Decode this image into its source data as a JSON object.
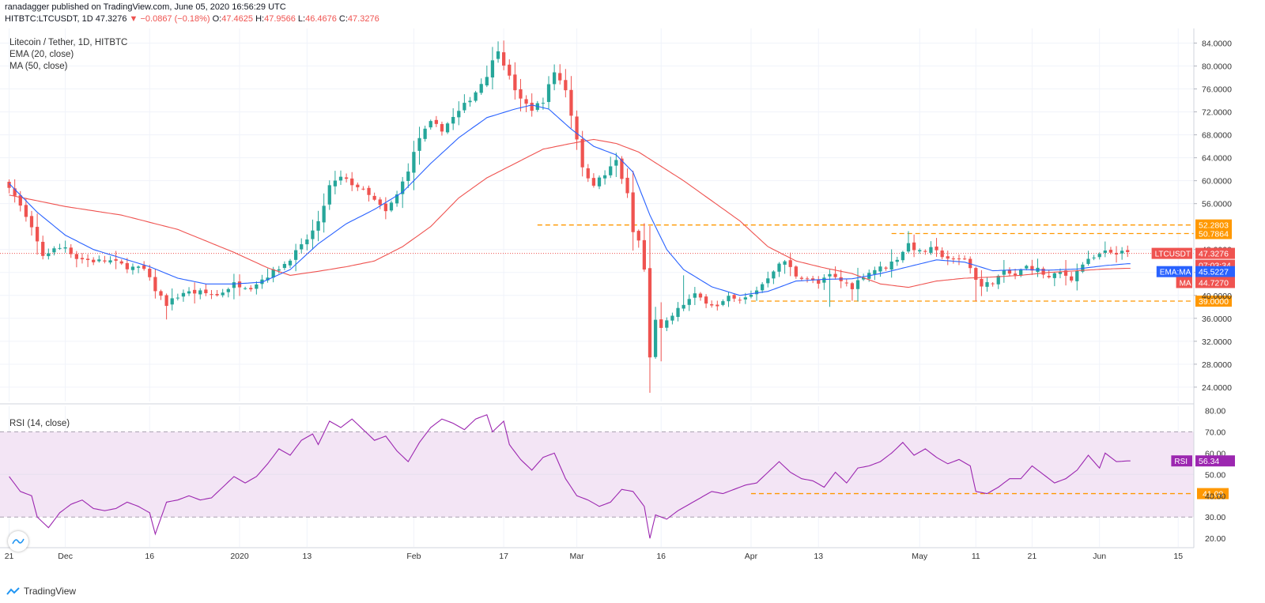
{
  "header": {
    "published": "ranadagger published on TradingView.com, June 05, 2020 16:56:29 UTC",
    "symbol": "HITBTC:LTCUSDT, 1D",
    "last": "47.3276",
    "change": "−0.0867 (−0.18%)",
    "open_label": "O:",
    "open": "47.4625",
    "high_label": "H:",
    "high": "47.9566",
    "low_label": "L:",
    "low": "46.4676",
    "close_label": "C:",
    "close": "47.3276"
  },
  "legend": {
    "title": "Litecoin / Tether, 1D, HITBTC",
    "ema": "EMA (20, close)",
    "ma": "MA (50, close)"
  },
  "rsi_panel": {
    "label": "RSI (14, close)"
  },
  "brand": {
    "name": "TradingView"
  },
  "colors": {
    "up": "#26a69a",
    "down": "#ef5350",
    "ema": "#2962ff",
    "ma": "#ef5350",
    "rsi": "#9c27b0",
    "rsi_band": "#f3e5f5",
    "level": "#ff9800"
  },
  "chart_data": {
    "type": "candlestick",
    "title": "Litecoin / Tether, 1D, HITBTC",
    "price_axis": {
      "ylim": [
        21.5,
        86.0
      ],
      "ticks": [
        "84.0000",
        "80.0000",
        "76.0000",
        "72.0000",
        "68.0000",
        "64.0000",
        "60.0000",
        "56.0000",
        "48.0000",
        "44.0000",
        "40.0000",
        "36.0000",
        "32.0000",
        "28.0000",
        "24.0000"
      ]
    },
    "rsi_axis": {
      "ylim": [
        16,
        82
      ],
      "ticks": [
        "80.00",
        "70.00",
        "60.00",
        "50.00",
        "40.00",
        "30.00",
        "20.00"
      ],
      "band": [
        30,
        70
      ]
    },
    "x_labels": [
      {
        "label": "21",
        "day": 0
      },
      {
        "label": "Dec",
        "day": 10
      },
      {
        "label": "16",
        "day": 25
      },
      {
        "label": "2020",
        "day": 41
      },
      {
        "label": "13",
        "day": 53
      },
      {
        "label": "Feb",
        "day": 72
      },
      {
        "label": "17",
        "day": 88
      },
      {
        "label": "Mar",
        "day": 101
      },
      {
        "label": "16",
        "day": 116
      },
      {
        "label": "Apr",
        "day": 132
      },
      {
        "label": "13",
        "day": 144
      },
      {
        "label": "May",
        "day": 162
      },
      {
        "label": "11",
        "day": 172
      },
      {
        "label": "21",
        "day": 182
      },
      {
        "label": "Jun",
        "day": 194
      },
      {
        "label": "15",
        "day": 208
      }
    ],
    "levels": [
      {
        "value": 52.2803,
        "label": "52.2803",
        "from_day": 94
      },
      {
        "value": 50.7864,
        "label": "50.7864",
        "from_day": 157
      },
      {
        "value": 39.0,
        "label": "39.0000",
        "from_day": 132
      }
    ],
    "rsi_levels": [
      {
        "value": 41.0,
        "label": "41.00",
        "from_day": 132
      }
    ],
    "price_badges": [
      {
        "label": "LTCUSDT",
        "value_label": "47.3276",
        "countdown": "07:03:34",
        "value": 47.3276,
        "color": "#ef5350"
      },
      {
        "label": "EMA:MA",
        "value_label": "45.5227",
        "value": 45.5227,
        "color": "#2962ff"
      },
      {
        "label": "MA",
        "value_label": "44.7270",
        "value": 44.727,
        "color": "#ef5350"
      }
    ],
    "rsi_badge": {
      "label": "RSI",
      "value_label": "56.34",
      "value": 56.34
    },
    "close_anchors": [
      [
        0,
        59.2
      ],
      [
        2,
        55.5
      ],
      [
        4,
        51.5
      ],
      [
        6,
        47.0
      ],
      [
        8,
        48.0
      ],
      [
        10,
        48.5
      ],
      [
        12,
        46.5
      ],
      [
        15,
        46.0
      ],
      [
        18,
        46.0
      ],
      [
        21,
        45.0
      ],
      [
        24,
        44.5
      ],
      [
        26,
        41.0
      ],
      [
        28,
        38.5
      ],
      [
        31,
        40.5
      ],
      [
        34,
        40.5
      ],
      [
        37,
        40.0
      ],
      [
        40,
        42.0
      ],
      [
        43,
        41.5
      ],
      [
        46,
        43.5
      ],
      [
        49,
        45.5
      ],
      [
        52,
        48.5
      ],
      [
        55,
        52.5
      ],
      [
        57,
        59.0
      ],
      [
        59,
        60.5
      ],
      [
        62,
        59.0
      ],
      [
        65,
        56.5
      ],
      [
        67,
        54.5
      ],
      [
        69,
        57.5
      ],
      [
        71,
        62.0
      ],
      [
        73,
        67.5
      ],
      [
        75,
        70.0
      ],
      [
        77,
        69.0
      ],
      [
        80,
        72.0
      ],
      [
        83,
        75.5
      ],
      [
        85,
        78.5
      ],
      [
        87,
        83.0
      ],
      [
        89,
        78.0
      ],
      [
        91,
        74.0
      ],
      [
        93,
        72.5
      ],
      [
        95,
        74.0
      ],
      [
        97,
        79.0
      ],
      [
        99,
        76.0
      ],
      [
        100,
        71.5
      ],
      [
        101,
        67.5
      ],
      [
        102,
        62.0
      ],
      [
        104,
        59.5
      ],
      [
        106,
        61.0
      ],
      [
        108,
        63.5
      ],
      [
        109,
        60.5
      ],
      [
        110,
        57.5
      ],
      [
        111,
        51.0
      ],
      [
        112,
        49.5
      ],
      [
        113,
        44.5
      ],
      [
        114,
        29.0
      ],
      [
        115,
        36.0
      ],
      [
        116,
        34.0
      ],
      [
        118,
        36.5
      ],
      [
        120,
        38.5
      ],
      [
        122,
        40.0
      ],
      [
        124,
        39.0
      ],
      [
        126,
        38.0
      ],
      [
        128,
        39.5
      ],
      [
        130,
        39.0
      ],
      [
        132,
        40.0
      ],
      [
        134,
        42.0
      ],
      [
        136,
        44.5
      ],
      [
        138,
        46.0
      ],
      [
        140,
        43.5
      ],
      [
        142,
        43.0
      ],
      [
        144,
        42.0
      ],
      [
        146,
        43.5
      ],
      [
        148,
        42.5
      ],
      [
        150,
        41.5
      ],
      [
        152,
        43.5
      ],
      [
        154,
        44.5
      ],
      [
        156,
        45.0
      ],
      [
        158,
        46.5
      ],
      [
        160,
        49.0
      ],
      [
        162,
        47.5
      ],
      [
        164,
        48.0
      ],
      [
        166,
        47.0
      ],
      [
        168,
        46.0
      ],
      [
        170,
        46.5
      ],
      [
        172,
        43.0
      ],
      [
        173,
        41.5
      ],
      [
        175,
        42.5
      ],
      [
        177,
        44.0
      ],
      [
        179,
        43.5
      ],
      [
        181,
        45.0
      ],
      [
        183,
        44.5
      ],
      [
        185,
        43.0
      ],
      [
        187,
        44.0
      ],
      [
        189,
        43.0
      ],
      [
        191,
        45.5
      ],
      [
        193,
        46.5
      ],
      [
        195,
        47.5
      ],
      [
        197,
        47.5
      ],
      [
        199,
        47.3276
      ]
    ],
    "high_spikes": [
      [
        87,
        84.3
      ],
      [
        97,
        80.0
      ],
      [
        114,
        29.8
      ],
      [
        116,
        38.8
      ],
      [
        120,
        43.5
      ],
      [
        160,
        51.2
      ],
      [
        195,
        49.4
      ]
    ],
    "low_spikes": [
      [
        114,
        24.0
      ],
      [
        116,
        28.5
      ],
      [
        172,
        39.0
      ],
      [
        146,
        38.0
      ],
      [
        28,
        35.8
      ]
    ],
    "ema20_anchors": [
      [
        0,
        59.5
      ],
      [
        5,
        54.5
      ],
      [
        10,
        50.5
      ],
      [
        15,
        48.0
      ],
      [
        20,
        46.5
      ],
      [
        25,
        45.0
      ],
      [
        30,
        43.0
      ],
      [
        35,
        42.0
      ],
      [
        40,
        42.0
      ],
      [
        45,
        42.3
      ],
      [
        50,
        44.5
      ],
      [
        55,
        49.0
      ],
      [
        60,
        52.5
      ],
      [
        65,
        55.0
      ],
      [
        70,
        58.0
      ],
      [
        75,
        63.0
      ],
      [
        80,
        67.5
      ],
      [
        85,
        71.0
      ],
      [
        90,
        72.5
      ],
      [
        93,
        73.2
      ],
      [
        96,
        72.5
      ],
      [
        100,
        69.0
      ],
      [
        104,
        66.0
      ],
      [
        108,
        64.5
      ],
      [
        111,
        61.5
      ],
      [
        114,
        54.0
      ],
      [
        117,
        48.0
      ],
      [
        120,
        44.5
      ],
      [
        125,
        41.5
      ],
      [
        130,
        40.0
      ],
      [
        135,
        40.7
      ],
      [
        140,
        42.5
      ],
      [
        145,
        42.8
      ],
      [
        150,
        42.9
      ],
      [
        155,
        43.8
      ],
      [
        160,
        45.0
      ],
      [
        165,
        46.2
      ],
      [
        170,
        45.8
      ],
      [
        175,
        44.3
      ],
      [
        180,
        44.5
      ],
      [
        185,
        44.4
      ],
      [
        190,
        44.6
      ],
      [
        195,
        45.2
      ],
      [
        199,
        45.5227
      ]
    ],
    "ma50_anchors": [
      [
        0,
        57.5
      ],
      [
        10,
        55.5
      ],
      [
        20,
        54.0
      ],
      [
        30,
        51.5
      ],
      [
        40,
        47.5
      ],
      [
        46,
        44.8
      ],
      [
        50,
        43.5
      ],
      [
        55,
        44.2
      ],
      [
        60,
        45.0
      ],
      [
        65,
        46.0
      ],
      [
        70,
        48.5
      ],
      [
        75,
        52.0
      ],
      [
        80,
        57.0
      ],
      [
        85,
        60.5
      ],
      [
        90,
        63.0
      ],
      [
        95,
        65.5
      ],
      [
        100,
        66.5
      ],
      [
        104,
        67.2
      ],
      [
        108,
        66.5
      ],
      [
        112,
        65.0
      ],
      [
        116,
        62.5
      ],
      [
        120,
        60.0
      ],
      [
        125,
        56.5
      ],
      [
        130,
        53.0
      ],
      [
        135,
        48.5
      ],
      [
        140,
        46.0
      ],
      [
        145,
        44.8
      ],
      [
        150,
        43.8
      ],
      [
        155,
        42.0
      ],
      [
        160,
        41.4
      ],
      [
        165,
        42.5
      ],
      [
        170,
        43.0
      ],
      [
        175,
        43.2
      ],
      [
        180,
        43.5
      ],
      [
        185,
        44.0
      ],
      [
        190,
        44.3
      ],
      [
        195,
        44.6
      ],
      [
        199,
        44.727
      ]
    ],
    "rsi_anchors": [
      [
        0,
        49
      ],
      [
        2,
        42
      ],
      [
        4,
        40
      ],
      [
        5,
        30
      ],
      [
        7,
        25
      ],
      [
        9,
        32
      ],
      [
        11,
        36
      ],
      [
        13,
        38
      ],
      [
        15,
        34
      ],
      [
        17,
        33
      ],
      [
        19,
        34
      ],
      [
        21,
        37
      ],
      [
        23,
        35
      ],
      [
        25,
        32
      ],
      [
        26,
        22
      ],
      [
        28,
        37
      ],
      [
        30,
        38
      ],
      [
        32,
        40
      ],
      [
        34,
        38
      ],
      [
        36,
        39
      ],
      [
        38,
        44
      ],
      [
        40,
        49
      ],
      [
        42,
        46
      ],
      [
        44,
        49
      ],
      [
        46,
        55
      ],
      [
        48,
        62
      ],
      [
        50,
        59
      ],
      [
        52,
        66
      ],
      [
        54,
        69
      ],
      [
        55,
        64
      ],
      [
        57,
        75
      ],
      [
        59,
        72
      ],
      [
        61,
        76
      ],
      [
        63,
        71
      ],
      [
        65,
        66
      ],
      [
        67,
        68
      ],
      [
        69,
        61
      ],
      [
        71,
        56
      ],
      [
        73,
        65
      ],
      [
        75,
        72
      ],
      [
        77,
        76
      ],
      [
        79,
        74
      ],
      [
        81,
        71
      ],
      [
        83,
        76
      ],
      [
        85,
        78
      ],
      [
        86,
        70
      ],
      [
        88,
        75
      ],
      [
        89,
        64
      ],
      [
        91,
        57
      ],
      [
        93,
        52
      ],
      [
        95,
        58
      ],
      [
        97,
        60
      ],
      [
        99,
        48
      ],
      [
        101,
        40
      ],
      [
        103,
        38
      ],
      [
        105,
        35
      ],
      [
        107,
        37
      ],
      [
        109,
        43
      ],
      [
        111,
        42
      ],
      [
        113,
        35
      ],
      [
        114,
        20
      ],
      [
        115,
        31
      ],
      [
        117,
        29
      ],
      [
        119,
        33
      ],
      [
        121,
        36
      ],
      [
        123,
        39
      ],
      [
        125,
        42
      ],
      [
        127,
        41
      ],
      [
        129,
        43
      ],
      [
        131,
        45
      ],
      [
        133,
        46
      ],
      [
        135,
        51
      ],
      [
        137,
        56
      ],
      [
        139,
        51
      ],
      [
        141,
        48
      ],
      [
        143,
        47
      ],
      [
        145,
        44
      ],
      [
        147,
        51
      ],
      [
        149,
        46
      ],
      [
        151,
        53
      ],
      [
        153,
        54
      ],
      [
        155,
        56
      ],
      [
        157,
        60
      ],
      [
        159,
        65
      ],
      [
        161,
        59
      ],
      [
        163,
        62
      ],
      [
        165,
        58
      ],
      [
        167,
        55
      ],
      [
        169,
        57
      ],
      [
        171,
        54
      ],
      [
        172,
        42
      ],
      [
        174,
        41
      ],
      [
        176,
        44
      ],
      [
        178,
        48
      ],
      [
        180,
        48
      ],
      [
        182,
        54
      ],
      [
        184,
        50
      ],
      [
        186,
        46
      ],
      [
        188,
        48
      ],
      [
        190,
        52
      ],
      [
        192,
        59
      ],
      [
        194,
        53
      ],
      [
        195,
        60
      ],
      [
        197,
        56
      ],
      [
        199,
        56.34
      ]
    ]
  }
}
